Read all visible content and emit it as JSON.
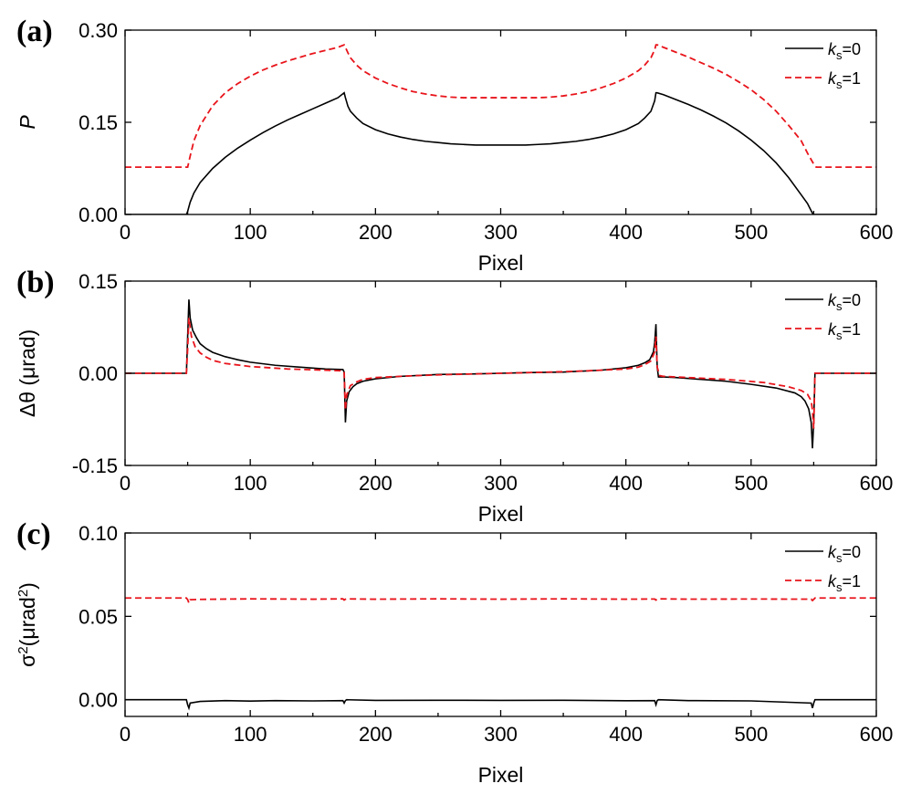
{
  "chart_data": [
    {
      "panel_label": "(a)",
      "type": "line",
      "xlabel": "Pixel",
      "ylabel": "P",
      "ylabel_style": "italic",
      "xlim": [
        0,
        600
      ],
      "ylim": [
        0,
        0.3
      ],
      "xticks": [
        "0",
        "100",
        "200",
        "300",
        "400",
        "500",
        "600"
      ],
      "yticks": [
        "0.00",
        "0.15",
        "0.30"
      ],
      "grid": false,
      "legend": {
        "position": "top-right",
        "entries": [
          {
            "k": "k",
            "sub": "s",
            "rest": "=0",
            "style": "solid",
            "color": "#000000"
          },
          {
            "k": "k",
            "sub": "s",
            "rest": "=1",
            "style": "dashed",
            "color": "#e8141b"
          }
        ]
      },
      "series": [
        {
          "name": "ks=0",
          "style": "solid",
          "color": "#000000",
          "x": [
            0,
            49,
            50,
            52,
            55,
            60,
            70,
            80,
            90,
            100,
            110,
            120,
            130,
            140,
            150,
            160,
            170,
            175,
            176,
            178,
            180,
            185,
            190,
            200,
            210,
            220,
            230,
            240,
            250,
            260,
            270,
            280,
            290,
            300,
            310,
            320,
            330,
            340,
            350,
            360,
            370,
            380,
            390,
            400,
            410,
            415,
            420,
            423,
            424,
            425,
            430,
            440,
            450,
            460,
            470,
            480,
            490,
            500,
            510,
            520,
            530,
            540,
            545,
            548,
            549,
            550,
            551,
            600
          ],
          "y": [
            0,
            0,
            0.005,
            0.02,
            0.035,
            0.052,
            0.075,
            0.093,
            0.108,
            0.121,
            0.133,
            0.144,
            0.154,
            0.163,
            0.172,
            0.181,
            0.19,
            0.198,
            0.19,
            0.176,
            0.168,
            0.157,
            0.148,
            0.138,
            0.131,
            0.126,
            0.122,
            0.119,
            0.117,
            0.115,
            0.114,
            0.113,
            0.113,
            0.113,
            0.113,
            0.113,
            0.114,
            0.115,
            0.117,
            0.119,
            0.122,
            0.126,
            0.131,
            0.138,
            0.148,
            0.157,
            0.168,
            0.185,
            0.198,
            0.198,
            0.195,
            0.187,
            0.179,
            0.17,
            0.16,
            0.149,
            0.136,
            0.121,
            0.104,
            0.084,
            0.06,
            0.032,
            0.018,
            0.006,
            0.002,
            0,
            0,
            0
          ]
        },
        {
          "name": "ks=1",
          "style": "dashed",
          "color": "#e8141b",
          "x": [
            0,
            50,
            52,
            55,
            60,
            70,
            80,
            90,
            100,
            110,
            120,
            130,
            140,
            150,
            160,
            170,
            175,
            176,
            178,
            180,
            185,
            190,
            200,
            210,
            220,
            230,
            240,
            250,
            260,
            270,
            280,
            290,
            300,
            310,
            320,
            330,
            340,
            350,
            360,
            370,
            380,
            390,
            400,
            410,
            415,
            420,
            423,
            424,
            425,
            430,
            440,
            450,
            460,
            470,
            480,
            490,
            500,
            510,
            520,
            530,
            540,
            545,
            550,
            552,
            600
          ],
          "y": [
            0.077,
            0.077,
            0.095,
            0.12,
            0.145,
            0.177,
            0.198,
            0.213,
            0.225,
            0.235,
            0.243,
            0.25,
            0.256,
            0.262,
            0.267,
            0.272,
            0.276,
            0.272,
            0.263,
            0.255,
            0.243,
            0.234,
            0.222,
            0.213,
            0.206,
            0.2,
            0.196,
            0.193,
            0.191,
            0.19,
            0.19,
            0.19,
            0.19,
            0.19,
            0.19,
            0.19,
            0.191,
            0.193,
            0.196,
            0.2,
            0.206,
            0.213,
            0.222,
            0.234,
            0.243,
            0.255,
            0.268,
            0.276,
            0.276,
            0.272,
            0.264,
            0.256,
            0.247,
            0.238,
            0.228,
            0.216,
            0.203,
            0.187,
            0.168,
            0.145,
            0.12,
            0.1,
            0.082,
            0.077,
            0.077
          ]
        }
      ]
    },
    {
      "panel_label": "(b)",
      "type": "line",
      "xlabel": "Pixel",
      "ylabel": "Δθ (μrad)",
      "xlim": [
        0,
        600
      ],
      "ylim": [
        -0.15,
        0.15
      ],
      "xticks": [
        "0",
        "100",
        "200",
        "300",
        "400",
        "500",
        "600"
      ],
      "yticks": [
        "0.15",
        "0.00",
        "-0.15"
      ],
      "grid": false,
      "legend": {
        "position": "top-right",
        "entries": [
          {
            "k": "k",
            "sub": "s",
            "rest": "=0",
            "style": "solid",
            "color": "#000000"
          },
          {
            "k": "k",
            "sub": "s",
            "rest": "=1",
            "style": "dashed",
            "color": "#e8141b"
          }
        ]
      },
      "series": [
        {
          "name": "ks=0",
          "style": "solid",
          "color": "#000000",
          "x": [
            0,
            49,
            50,
            51,
            52,
            54,
            57,
            60,
            65,
            70,
            80,
            90,
            100,
            120,
            140,
            160,
            174,
            175,
            176,
            177,
            179,
            182,
            185,
            190,
            200,
            220,
            250,
            280,
            300,
            320,
            350,
            380,
            400,
            410,
            415,
            419,
            422,
            423,
            424,
            425,
            426,
            430,
            440,
            460,
            480,
            500,
            520,
            535,
            540,
            543,
            546,
            548,
            549,
            550,
            551,
            600
          ],
          "y": [
            0,
            0,
            0.06,
            0.12,
            0.09,
            0.07,
            0.058,
            0.048,
            0.04,
            0.034,
            0.027,
            0.022,
            0.018,
            0.013,
            0.01,
            0.007,
            0.006,
            0.002,
            -0.08,
            -0.045,
            -0.03,
            -0.022,
            -0.017,
            -0.013,
            -0.009,
            -0.005,
            -0.002,
            -0.001,
            0,
            0.001,
            0.002,
            0.005,
            0.009,
            0.013,
            0.017,
            0.022,
            0.035,
            0.05,
            0.08,
            0.01,
            -0.006,
            -0.006,
            -0.007,
            -0.01,
            -0.013,
            -0.018,
            -0.024,
            -0.032,
            -0.038,
            -0.045,
            -0.058,
            -0.08,
            -0.122,
            -0.08,
            0,
            0
          ]
        },
        {
          "name": "ks=1",
          "style": "dashed",
          "color": "#e8141b",
          "x": [
            0,
            49,
            50,
            51,
            53,
            56,
            60,
            65,
            70,
            80,
            100,
            130,
            160,
            174,
            175,
            176,
            177,
            180,
            185,
            190,
            200,
            230,
            260,
            300,
            340,
            370,
            400,
            410,
            415,
            420,
            423,
            424,
            425,
            427,
            430,
            450,
            480,
            510,
            530,
            540,
            545,
            548,
            549,
            550,
            551,
            600
          ],
          "y": [
            0,
            0,
            0.04,
            0.09,
            0.06,
            0.043,
            0.033,
            0.026,
            0.021,
            0.016,
            0.011,
            0.007,
            0.005,
            0.004,
            0.001,
            -0.06,
            -0.035,
            -0.02,
            -0.014,
            -0.01,
            -0.007,
            -0.004,
            -0.002,
            0,
            0.002,
            0.004,
            0.007,
            0.01,
            0.014,
            0.02,
            0.035,
            0.06,
            0.01,
            -0.004,
            -0.005,
            -0.007,
            -0.01,
            -0.015,
            -0.022,
            -0.028,
            -0.034,
            -0.045,
            -0.06,
            -0.09,
            0,
            0
          ]
        }
      ]
    },
    {
      "panel_label": "(c)",
      "type": "line",
      "xlabel": "Pixel",
      "ylabel": "σ2(μrad2)",
      "ylabel_parts": {
        "sigma": "σ",
        "sup1": "2",
        "mid": "(μrad",
        "sup2": "2",
        "end": ")"
      },
      "xlim": [
        0,
        600
      ],
      "ylim": [
        -0.01,
        0.1
      ],
      "xticks": [
        "0",
        "100",
        "200",
        "300",
        "400",
        "500",
        "600"
      ],
      "yticks": [
        "0.10",
        "0.05",
        "0.00"
      ],
      "ytick_values": [
        0.1,
        0.05,
        0
      ],
      "grid": false,
      "legend": {
        "position": "top-right",
        "entries": [
          {
            "k": "k",
            "sub": "s",
            "rest": "=0",
            "style": "solid",
            "color": "#000000"
          },
          {
            "k": "k",
            "sub": "s",
            "rest": "=1",
            "style": "dashed",
            "color": "#e8141b"
          }
        ]
      },
      "series": [
        {
          "name": "ks=0",
          "style": "solid",
          "color": "#000000",
          "x": [
            0,
            49,
            50,
            51,
            52,
            60,
            80,
            100,
            120,
            150,
            174,
            175,
            176,
            177,
            200,
            250,
            300,
            350,
            400,
            423,
            424,
            425,
            426,
            450,
            500,
            548,
            549,
            550,
            551,
            600
          ],
          "y": [
            0,
            0,
            -0.003,
            -0.005,
            -0.002,
            -0.001,
            -0.0005,
            -0.0008,
            -0.0005,
            -0.0007,
            -0.0005,
            -0.002,
            -0.0005,
            0,
            -0.0004,
            -0.0003,
            -0.0004,
            -0.0003,
            -0.0006,
            -0.0005,
            -0.003,
            -0.0005,
            0,
            -0.0005,
            -0.0007,
            -0.002,
            -0.005,
            -0.002,
            0,
            0
          ]
        },
        {
          "name": "ks=1",
          "style": "dashed",
          "color": "#e8141b",
          "x": [
            0,
            49,
            50,
            51,
            52,
            60,
            100,
            150,
            174,
            175,
            176,
            177,
            200,
            250,
            300,
            350,
            400,
            423,
            424,
            425,
            426,
            450,
            500,
            548,
            549,
            550,
            551,
            600
          ],
          "y": [
            0.061,
            0.061,
            0.06,
            0.058,
            0.06,
            0.0602,
            0.0605,
            0.0603,
            0.0605,
            0.0598,
            0.0603,
            0.0605,
            0.0603,
            0.0605,
            0.0603,
            0.0605,
            0.0603,
            0.0604,
            0.0598,
            0.0603,
            0.0605,
            0.0603,
            0.0604,
            0.0603,
            0.0595,
            0.0602,
            0.061,
            0.061
          ]
        }
      ]
    }
  ]
}
